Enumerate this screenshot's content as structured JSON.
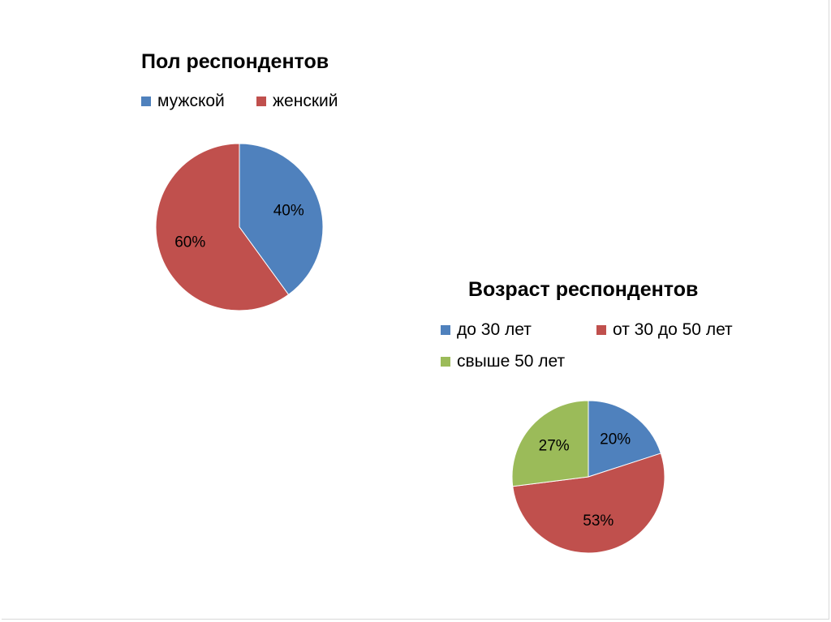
{
  "chart_data": [
    {
      "type": "pie",
      "title": "Пол респондентов",
      "categories": [
        "мужской",
        "женский"
      ],
      "values": [
        40,
        60
      ],
      "data_labels": [
        "40%",
        "60%"
      ],
      "colors": [
        "#4F81BD",
        "#C0504D"
      ],
      "legend": "top"
    },
    {
      "type": "pie",
      "title": "Возраст респондентов",
      "categories": [
        "до 30 лет",
        "от 30 до 50 лет",
        "свыше 50 лет"
      ],
      "values": [
        20,
        53,
        27
      ],
      "data_labels": [
        "20%",
        "53%",
        "27%"
      ],
      "colors": [
        "#4F81BD",
        "#C0504D",
        "#9BBB59"
      ],
      "legend": "top"
    }
  ]
}
